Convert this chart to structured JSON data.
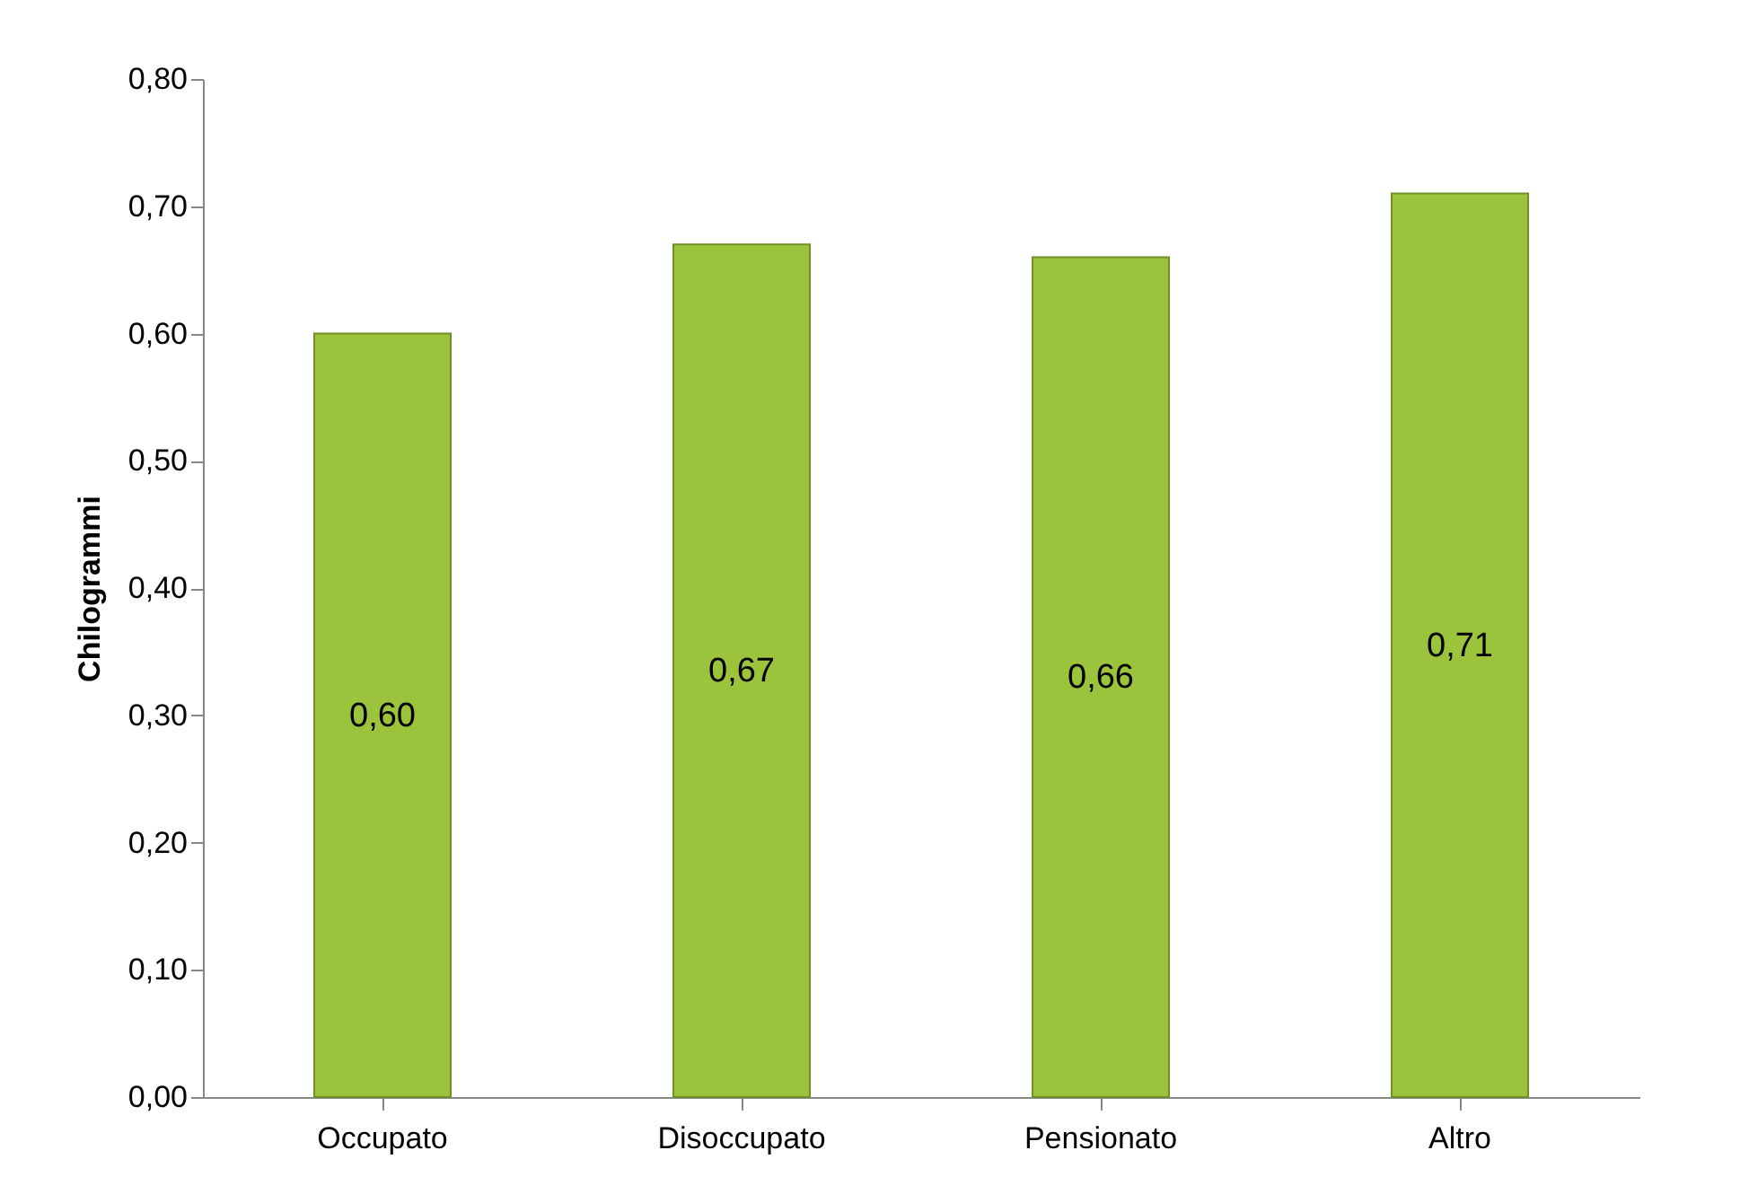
{
  "chart_data": {
    "type": "bar",
    "ylabel": "Chilogrammi",
    "categories": [
      "Occupato",
      "Disoccupato",
      "Pensionato",
      "Altro"
    ],
    "values": [
      0.6,
      0.67,
      0.66,
      0.71
    ],
    "value_labels": [
      "0,60",
      "0,67",
      "0,66",
      "0,71"
    ],
    "color": "#9bc43c",
    "ylim": [
      0,
      0.8
    ],
    "yticks": [
      {
        "value": 0,
        "label": "0,00"
      },
      {
        "value": 0.1,
        "label": "0,10"
      },
      {
        "value": 0.2,
        "label": "0,20"
      },
      {
        "value": 0.3,
        "label": "0,30"
      },
      {
        "value": 0.4,
        "label": "0,40"
      },
      {
        "value": 0.5,
        "label": "0,50"
      },
      {
        "value": 0.6,
        "label": "0,60"
      },
      {
        "value": 0.7,
        "label": "0,70"
      },
      {
        "value": 0.8,
        "label": "0,80"
      }
    ],
    "grid": false
  }
}
